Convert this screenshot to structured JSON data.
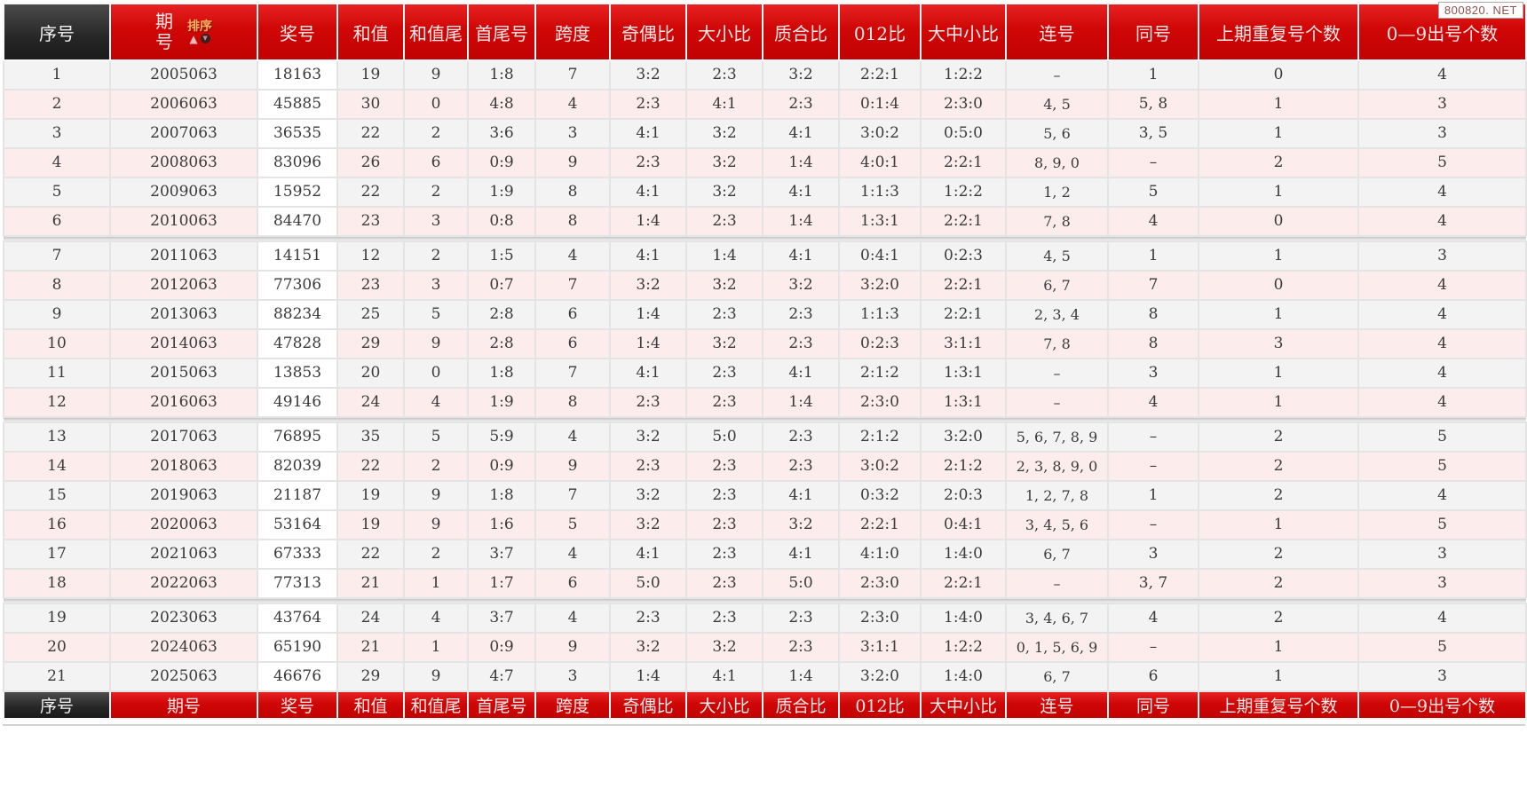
{
  "watermark": {
    "text": "800820. NET"
  },
  "colors": {
    "header_red": "#cf0606",
    "header_red_light": "#e62222",
    "header_red_dark": "#c20202",
    "dark_cell": "#262626",
    "row_grey": "#f3f3f3",
    "row_pink": "#fdecec",
    "sort_label_orange": "#ffb25e"
  },
  "table": {
    "columns": [
      "序号",
      "期号",
      "奖号",
      "和值",
      "和值尾",
      "首尾号",
      "跨度",
      "奇偶比",
      "大小比",
      "质合比",
      "012比",
      "大中小比",
      "连号",
      "同号",
      "上期重复号个数",
      "0—9出号个数"
    ],
    "period_header": {
      "chars": [
        "期",
        "号"
      ],
      "sort_label": "排序",
      "sort_asc_icon": "▲",
      "sort_desc_icon": "▼"
    },
    "group_size": 6,
    "rows": [
      [
        "1",
        "2005063",
        "18163",
        "19",
        "9",
        "1:8",
        "7",
        "3:2",
        "2:3",
        "3:2",
        "2:2:1",
        "1:2:2",
        "–",
        "1",
        "0",
        "4"
      ],
      [
        "2",
        "2006063",
        "45885",
        "30",
        "0",
        "4:8",
        "4",
        "2:3",
        "4:1",
        "2:3",
        "0:1:4",
        "2:3:0",
        "4, 5",
        "5, 8",
        "1",
        "3"
      ],
      [
        "3",
        "2007063",
        "36535",
        "22",
        "2",
        "3:6",
        "3",
        "4:1",
        "3:2",
        "4:1",
        "3:0:2",
        "0:5:0",
        "5, 6",
        "3, 5",
        "1",
        "3"
      ],
      [
        "4",
        "2008063",
        "83096",
        "26",
        "6",
        "0:9",
        "9",
        "2:3",
        "3:2",
        "1:4",
        "4:0:1",
        "2:2:1",
        "8, 9, 0",
        "–",
        "2",
        "5"
      ],
      [
        "5",
        "2009063",
        "15952",
        "22",
        "2",
        "1:9",
        "8",
        "4:1",
        "3:2",
        "4:1",
        "1:1:3",
        "1:2:2",
        "1, 2",
        "5",
        "1",
        "4"
      ],
      [
        "6",
        "2010063",
        "84470",
        "23",
        "3",
        "0:8",
        "8",
        "1:4",
        "2:3",
        "1:4",
        "1:3:1",
        "2:2:1",
        "7, 8",
        "4",
        "0",
        "4"
      ],
      [
        "7",
        "2011063",
        "14151",
        "12",
        "2",
        "1:5",
        "4",
        "4:1",
        "1:4",
        "4:1",
        "0:4:1",
        "0:2:3",
        "4, 5",
        "1",
        "1",
        "3"
      ],
      [
        "8",
        "2012063",
        "77306",
        "23",
        "3",
        "0:7",
        "7",
        "3:2",
        "3:2",
        "3:2",
        "3:2:0",
        "2:2:1",
        "6, 7",
        "7",
        "0",
        "4"
      ],
      [
        "9",
        "2013063",
        "88234",
        "25",
        "5",
        "2:8",
        "6",
        "1:4",
        "2:3",
        "2:3",
        "1:1:3",
        "2:2:1",
        "2, 3, 4",
        "8",
        "1",
        "4"
      ],
      [
        "10",
        "2014063",
        "47828",
        "29",
        "9",
        "2:8",
        "6",
        "1:4",
        "3:2",
        "2:3",
        "0:2:3",
        "3:1:1",
        "7, 8",
        "8",
        "3",
        "4"
      ],
      [
        "11",
        "2015063",
        "13853",
        "20",
        "0",
        "1:8",
        "7",
        "4:1",
        "2:3",
        "4:1",
        "2:1:2",
        "1:3:1",
        "–",
        "3",
        "1",
        "4"
      ],
      [
        "12",
        "2016063",
        "49146",
        "24",
        "4",
        "1:9",
        "8",
        "2:3",
        "2:3",
        "1:4",
        "2:3:0",
        "1:3:1",
        "–",
        "4",
        "1",
        "4"
      ],
      [
        "13",
        "2017063",
        "76895",
        "35",
        "5",
        "5:9",
        "4",
        "3:2",
        "5:0",
        "2:3",
        "2:1:2",
        "3:2:0",
        "5, 6, 7, 8, 9",
        "–",
        "2",
        "5"
      ],
      [
        "14",
        "2018063",
        "82039",
        "22",
        "2",
        "0:9",
        "9",
        "2:3",
        "2:3",
        "2:3",
        "3:0:2",
        "2:1:2",
        "2, 3, 8, 9, 0",
        "–",
        "2",
        "5"
      ],
      [
        "15",
        "2019063",
        "21187",
        "19",
        "9",
        "1:8",
        "7",
        "3:2",
        "2:3",
        "4:1",
        "0:3:2",
        "2:0:3",
        "1, 2, 7, 8",
        "1",
        "2",
        "4"
      ],
      [
        "16",
        "2020063",
        "53164",
        "19",
        "9",
        "1:6",
        "5",
        "3:2",
        "2:3",
        "3:2",
        "2:2:1",
        "0:4:1",
        "3, 4, 5, 6",
        "–",
        "1",
        "5"
      ],
      [
        "17",
        "2021063",
        "67333",
        "22",
        "2",
        "3:7",
        "4",
        "4:1",
        "2:3",
        "4:1",
        "4:1:0",
        "1:4:0",
        "6, 7",
        "3",
        "2",
        "3"
      ],
      [
        "18",
        "2022063",
        "77313",
        "21",
        "1",
        "1:7",
        "6",
        "5:0",
        "2:3",
        "5:0",
        "2:3:0",
        "2:2:1",
        "–",
        "3, 7",
        "2",
        "3"
      ],
      [
        "19",
        "2023063",
        "43764",
        "24",
        "4",
        "3:7",
        "4",
        "2:3",
        "2:3",
        "2:3",
        "2:3:0",
        "1:4:0",
        "3, 4, 6, 7",
        "4",
        "2",
        "4"
      ],
      [
        "20",
        "2024063",
        "65190",
        "21",
        "1",
        "0:9",
        "9",
        "3:2",
        "3:2",
        "2:3",
        "3:1:1",
        "1:2:2",
        "0, 1, 5, 6, 9",
        "–",
        "1",
        "5"
      ],
      [
        "21",
        "2025063",
        "46676",
        "29",
        "9",
        "4:7",
        "3",
        "1:4",
        "4:1",
        "1:4",
        "3:2:0",
        "1:4:0",
        "6, 7",
        "6",
        "1",
        "3"
      ]
    ]
  }
}
